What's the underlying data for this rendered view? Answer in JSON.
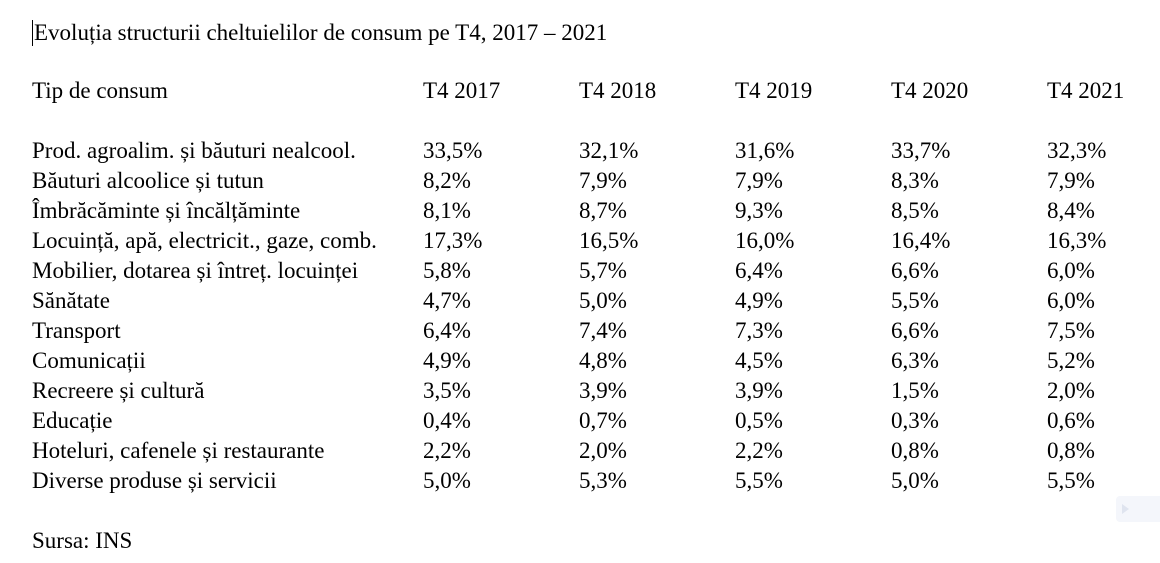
{
  "document": {
    "title": "Evoluția structurii cheltuielilor de consum pe T4, 2017 – 2021",
    "source": "Sursa: INS"
  },
  "table": {
    "headers": [
      "Tip de consum",
      "T4 2017",
      "T4 2018",
      "T4 2019",
      "T4 2020",
      "T4 2021"
    ],
    "rows": [
      {
        "label": "Prod. agroalim. și băuturi nealcool.",
        "values": [
          "33,5%",
          "32,1%",
          "31,6%",
          "33,7%",
          "32,3%"
        ]
      },
      {
        "label": "Băuturi alcoolice și tutun",
        "values": [
          "8,2%",
          "7,9%",
          "7,9%",
          "8,3%",
          "7,9%"
        ]
      },
      {
        "label": "Îmbrăcăminte și încălțăminte",
        "values": [
          "8,1%",
          "8,7%",
          "9,3%",
          "8,5%",
          "8,4%"
        ]
      },
      {
        "label": "Locuință, apă, electricit., gaze, comb.",
        "values": [
          "17,3%",
          "16,5%",
          "16,0%",
          "16,4%",
          "16,3%"
        ]
      },
      {
        "label": "Mobilier, dotarea și întreț. locuinței",
        "values": [
          "5,8%",
          "5,7%",
          "6,4%",
          "6,6%",
          "6,0%"
        ]
      },
      {
        "label": "Sănătate",
        "values": [
          "4,7%",
          "5,0%",
          "4,9%",
          "5,5%",
          "6,0%"
        ]
      },
      {
        "label": "Transport",
        "values": [
          "6,4%",
          "7,4%",
          "7,3%",
          "6,6%",
          "7,5%"
        ]
      },
      {
        "label": "Comunicații",
        "values": [
          "4,9%",
          "4,8%",
          "4,5%",
          "6,3%",
          "5,2%"
        ]
      },
      {
        "label": "Recreere și cultură",
        "values": [
          "3,5%",
          "3,9%",
          "3,9%",
          "1,5%",
          "2,0%"
        ]
      },
      {
        "label": "Educație",
        "values": [
          "0,4%",
          "0,7%",
          "0,5%",
          "0,3%",
          "0,6%"
        ]
      },
      {
        "label": "Hoteluri, cafenele și restaurante",
        "values": [
          "2,2%",
          "2,0%",
          "2,2%",
          "0,8%",
          "0,8%"
        ]
      },
      {
        "label": "Diverse produse și servicii",
        "values": [
          "5,0%",
          "5,3%",
          "5,5%",
          "5,0%",
          "5,5%"
        ]
      }
    ]
  },
  "icons": {
    "corner_button": "play-arrow-icon"
  }
}
